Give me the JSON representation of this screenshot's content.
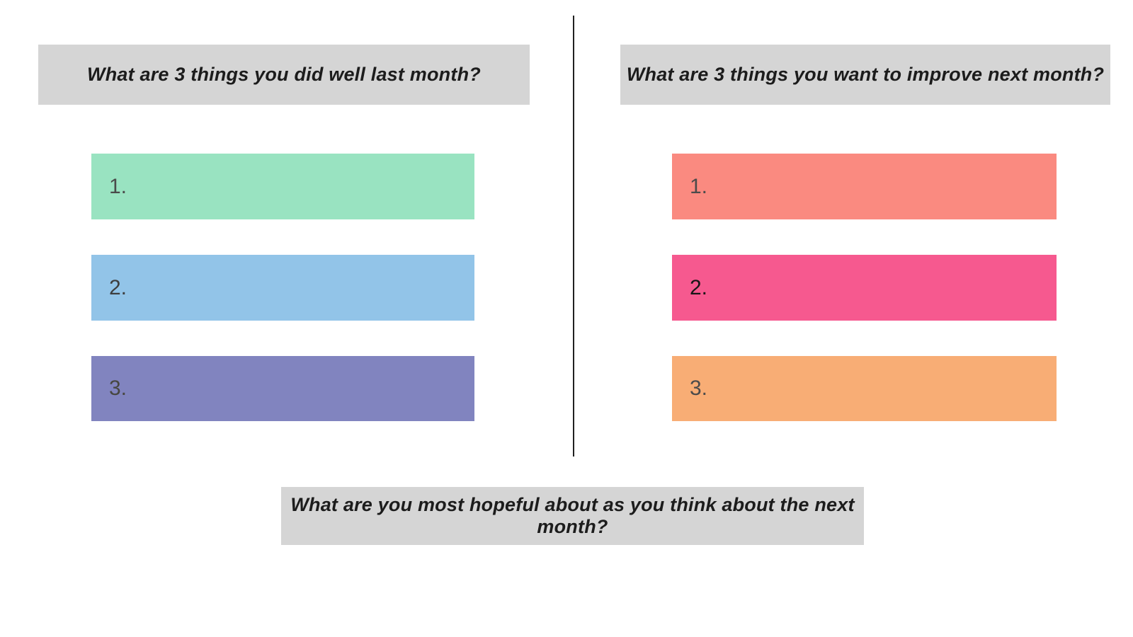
{
  "board": {
    "background": "#ffffff",
    "text_color": "#1c1c1c",
    "divider_color": "#202020",
    "left_section": {
      "prompt": "What are 3 things you did well last month?",
      "prompt_bg": "#d5d5d5",
      "items": [
        {
          "number": "1.",
          "bar_color": "#99e3c1",
          "number_color": "#4b4b4b"
        },
        {
          "number": "2.",
          "bar_color": "#92c4e8",
          "number_color": "#3e3e3e"
        },
        {
          "number": "3.",
          "bar_color": "#8184bf",
          "number_color": "#474740"
        }
      ]
    },
    "right_section": {
      "prompt": "What are 3 things you want to improve next month?",
      "prompt_bg": "#d5d5d5",
      "items": [
        {
          "number": "1.",
          "bar_color": "#fa8a80",
          "number_color": "#4b4b4b"
        },
        {
          "number": "2.",
          "bar_color": "#f6598f",
          "number_color": "#161616"
        },
        {
          "number": "3.",
          "bar_color": "#f8ad75",
          "number_color": "#4b4b4b"
        }
      ]
    },
    "bottom_prompt": {
      "label": "What are you most hopeful about as you think about the next month?",
      "bg": "#d5d5d5"
    }
  }
}
